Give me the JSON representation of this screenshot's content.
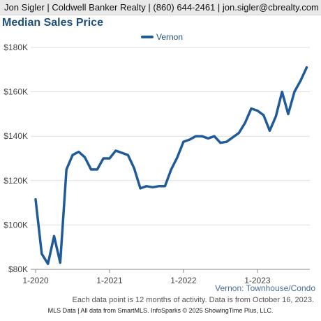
{
  "header": {
    "text": "Jon Sigler | Coldwell Banker Realty | (860) 644-2461 | jon.sigler@cbrealty.com"
  },
  "colors": {
    "series": "#1f5a99",
    "title": "#1f4e79",
    "grid": "#dddddd",
    "axis": "#888888",
    "header_bg": "#e9e9e9"
  },
  "chart_data": {
    "type": "line",
    "title": "Median Sales Price",
    "subtitle": "Vernon: Townhouse/Condo",
    "xlabel": "",
    "ylabel": "",
    "ylim": [
      80000,
      180000
    ],
    "y_ticks": [
      {
        "value": 80000,
        "label": "$80K"
      },
      {
        "value": 100000,
        "label": "$100K"
      },
      {
        "value": 120000,
        "label": "$120K"
      },
      {
        "value": 140000,
        "label": "$140K"
      },
      {
        "value": 160000,
        "label": "$160K"
      },
      {
        "value": 180000,
        "label": "$180K"
      }
    ],
    "x_ticks": [
      {
        "index": 0,
        "label": "1-2020"
      },
      {
        "index": 12,
        "label": "1-2021"
      },
      {
        "index": 24,
        "label": "1-2022"
      },
      {
        "index": 36,
        "label": "1-2023"
      }
    ],
    "x_count": 45,
    "grid": true,
    "legend_position": "top-center",
    "series": [
      {
        "name": "Vernon",
        "values": [
          111500,
          87000,
          82500,
          95000,
          83000,
          125000,
          131500,
          133000,
          130500,
          125000,
          125000,
          130000,
          130000,
          133500,
          132500,
          131500,
          125500,
          116500,
          117500,
          117000,
          117500,
          117500,
          125000,
          130500,
          137500,
          138500,
          140000,
          140000,
          139000,
          140000,
          137000,
          137500,
          139500,
          141500,
          146000,
          152500,
          151500,
          149500,
          142500,
          149000,
          160000,
          150000,
          160000,
          165000,
          171000
        ]
      }
    ]
  },
  "note": "Each data point is 12 months of activity. Data is from October 16, 2023.",
  "footer": "MLS Data | All data from SmartMLS. InfoSparks © 2025 ShowingTime Plus, LLC."
}
